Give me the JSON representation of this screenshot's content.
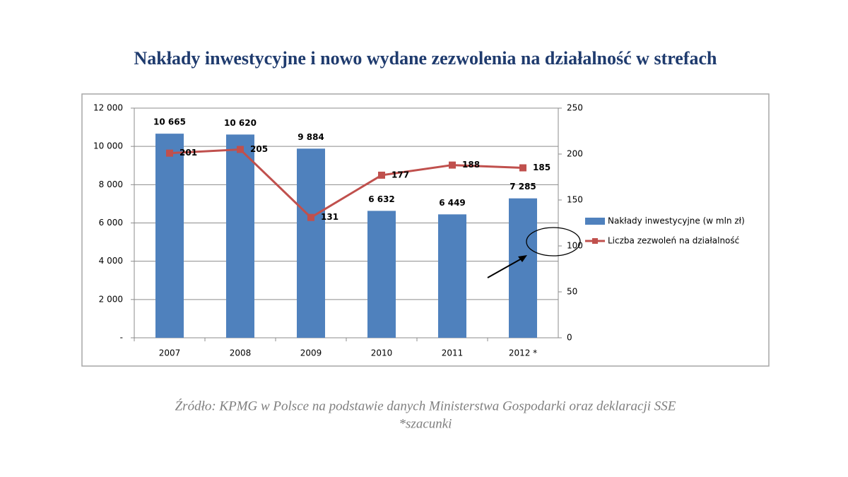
{
  "chart_data": {
    "type": "bar",
    "title": "Nakłady inwestycyjne i nowo wydane zezwolenia na działalność w strefach",
    "categories": [
      "2007",
      "2008",
      "2009",
      "2010",
      "2011",
      "2012 *"
    ],
    "series": [
      {
        "name": "Nakłady inwestycyjne (w mln zł)",
        "type": "bar",
        "color": "#4f81bd",
        "values": [
          10665,
          10620,
          9884,
          6632,
          6449,
          7285
        ],
        "value_labels": [
          "10 665",
          "10 620",
          "9 884",
          "6 632",
          "6 449",
          "7 285"
        ]
      },
      {
        "name": "Liczba zezwoleń na działalność",
        "type": "line",
        "axis": "y2",
        "color": "#c0504d",
        "values": [
          201,
          205,
          131,
          177,
          188,
          185
        ]
      }
    ],
    "ylim": [
      0,
      12000
    ],
    "yticks": [
      {
        "value": 0,
        "label": "-"
      },
      {
        "value": 2000,
        "label": "2 000"
      },
      {
        "value": 4000,
        "label": "4 000"
      },
      {
        "value": 6000,
        "label": "6 000"
      },
      {
        "value": 8000,
        "label": "8 000"
      },
      {
        "value": 10000,
        "label": "10 000"
      },
      {
        "value": 12000,
        "label": "12 000"
      }
    ],
    "y2lim": [
      0,
      250
    ],
    "y2ticks": [
      0,
      50,
      100,
      150,
      200,
      250
    ],
    "grid": true,
    "legend": "right",
    "source": "Źródło: KPMG w Polsce na podstawie danych Ministerstwa Gospodarki oraz deklaracji SSE",
    "note": "*szacunki"
  }
}
